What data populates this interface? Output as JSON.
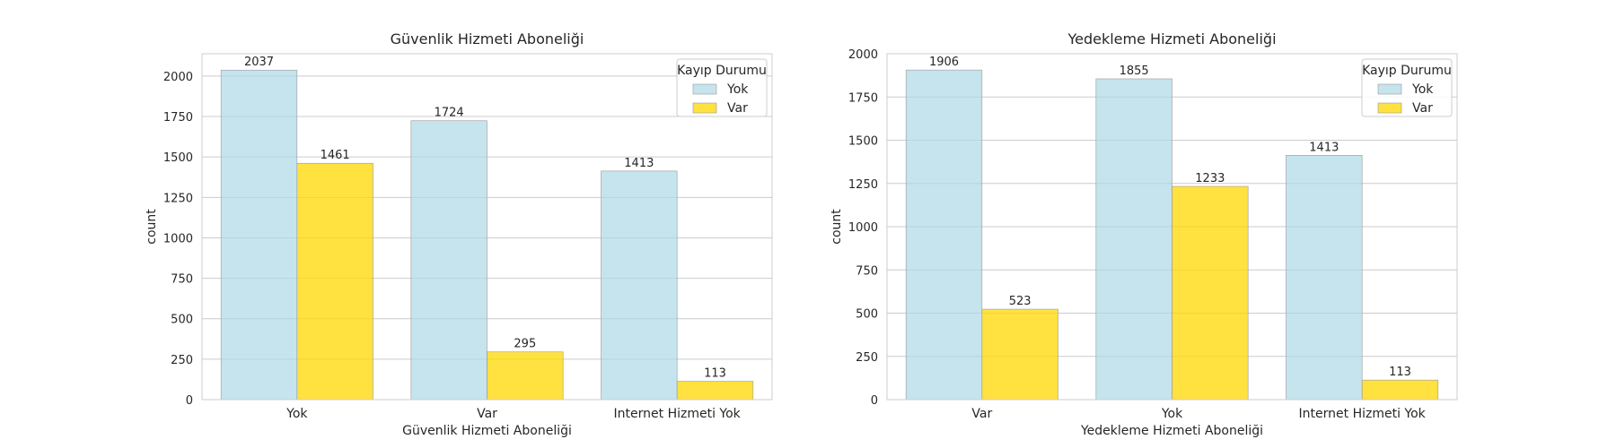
{
  "colors": {
    "Yok": "#add8e6",
    "Var": "#ffd700",
    "grid": "#cccccc",
    "axis": "#cccccc"
  },
  "chart_data": [
    {
      "type": "bar",
      "title": "Güvenlik Hizmeti Aboneliği",
      "xlabel": "Güvenlik Hizmeti Aboneliği",
      "ylabel": "count",
      "categories": [
        "Yok",
        "Var",
        "Internet Hizmeti Yok"
      ],
      "series": [
        {
          "name": "Yok",
          "values": [
            2037,
            1724,
            1413
          ]
        },
        {
          "name": "Var",
          "values": [
            1461,
            295,
            113
          ]
        }
      ],
      "ylim": [
        0,
        2138
      ],
      "yticks": [
        0,
        250,
        500,
        750,
        1000,
        1250,
        1500,
        1750,
        2000
      ],
      "legend": {
        "title": "Kayıp Durumu",
        "placement": "top-right"
      },
      "grid": true
    },
    {
      "type": "bar",
      "title": "Yedekleme Hizmeti Aboneliği",
      "xlabel": "Yedekleme Hizmeti Aboneliği",
      "ylabel": "count",
      "categories": [
        "Var",
        "Yok",
        "Internet Hizmeti Yok"
      ],
      "series": [
        {
          "name": "Yok",
          "values": [
            1906,
            1855,
            1413
          ]
        },
        {
          "name": "Var",
          "values": [
            523,
            1233,
            113
          ]
        }
      ],
      "ylim": [
        0,
        2000
      ],
      "yticks": [
        0,
        250,
        500,
        750,
        1000,
        1250,
        1500,
        1750,
        2000
      ],
      "legend": {
        "title": "Kayıp Durumu",
        "placement": "top-right"
      },
      "grid": true
    }
  ]
}
